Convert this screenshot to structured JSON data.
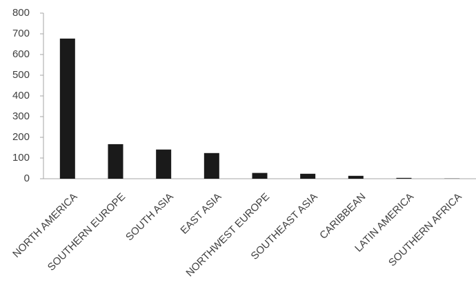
{
  "chart_data": {
    "type": "bar",
    "categories": [
      "NORTH AMERICA",
      "SOUTHERN EUROPE",
      "SOUTH ASIA",
      "EAST ASIA",
      "NORTHWEST EUROPE",
      "SOUTHEAST ASIA",
      "CARIBBEAN",
      "LATIN AMERICA",
      "SOUTHERN AFRICA"
    ],
    "values": [
      677,
      167,
      141,
      124,
      28,
      24,
      14,
      4,
      1
    ],
    "color": "#1a1a1a",
    "ylim": [
      0,
      800
    ],
    "yticks": [
      0,
      100,
      200,
      300,
      400,
      500,
      600,
      700,
      800
    ],
    "grid": false
  }
}
